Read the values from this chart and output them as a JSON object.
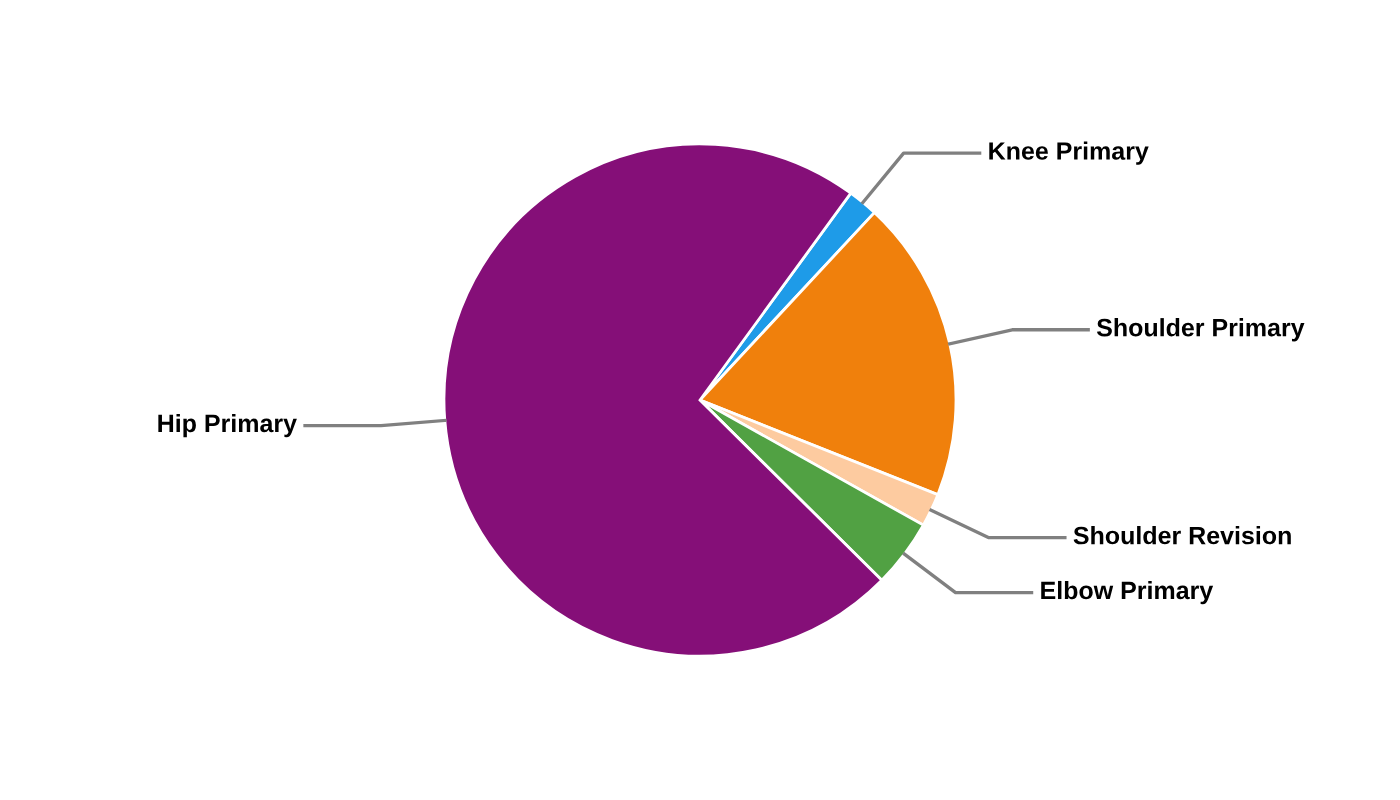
{
  "chart_data": {
    "type": "pie",
    "categories": [
      "Knee Primary",
      "Shoulder Primary",
      "Shoulder Revision",
      "Elbow Primary",
      "Hip Primary"
    ],
    "values": [
      1.9,
      19.1,
      2.1,
      4.3,
      72.6
    ],
    "colors": [
      "#1e9be8",
      "#f0800c",
      "#fdcba0",
      "#51a143",
      "#850f78"
    ],
    "legend": false
  }
}
